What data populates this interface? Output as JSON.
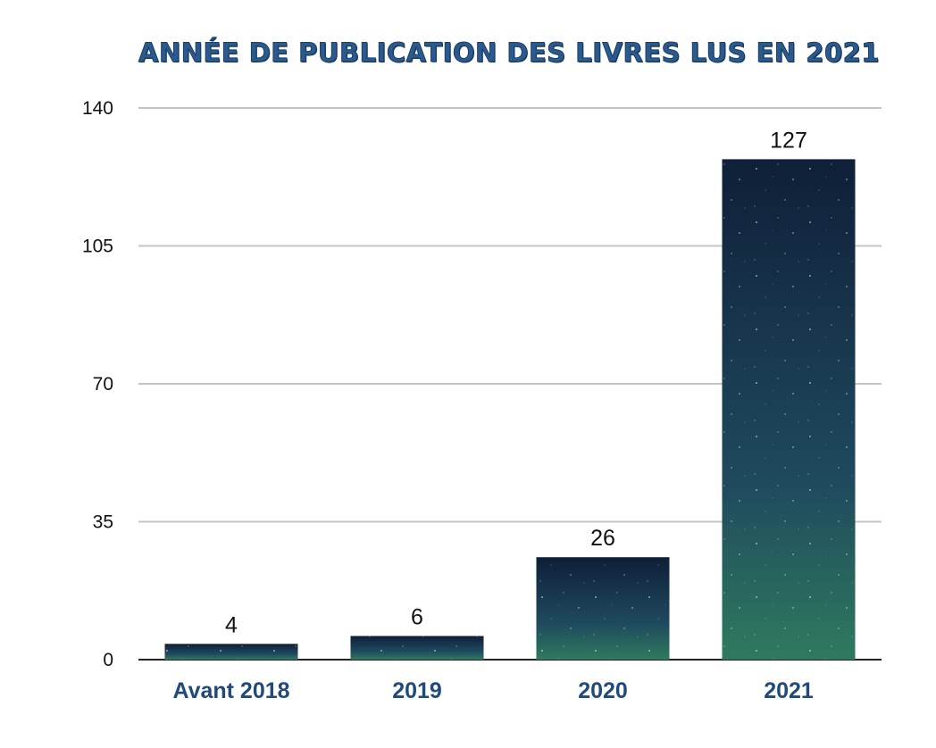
{
  "chart_data": {
    "type": "bar",
    "title": "ANNÉE DE PUBLICATION DES LIVRES LUS EN 2021",
    "categories": [
      "Avant 2018",
      "2019",
      "2020",
      "2021"
    ],
    "values": [
      4,
      6,
      26,
      127
    ],
    "xlabel": "",
    "ylabel": "",
    "ylim": [
      0,
      140
    ],
    "yticks": [
      0,
      35,
      70,
      105,
      140
    ],
    "grid": true,
    "legend": "none",
    "colors": {
      "bar_top": "#0f1f38",
      "bar_mid": "#1f4a5e",
      "bar_bottom": "#2f7a5e",
      "grid": "#c4c4c4",
      "axis": "#222222",
      "title": "#2a5a8e",
      "category_label": "#1f4a7a"
    }
  }
}
